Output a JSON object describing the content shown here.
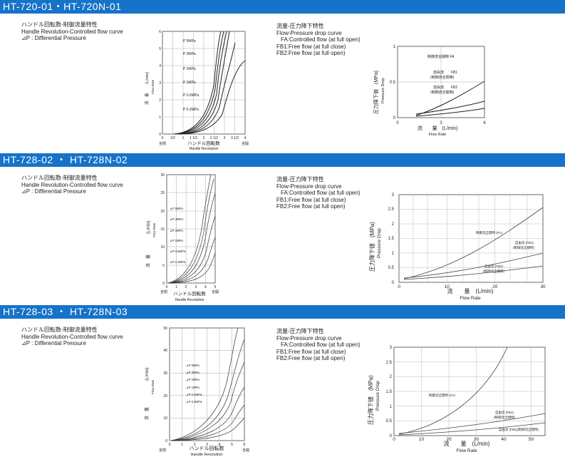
{
  "sections": [
    {
      "title": "HT-720-01・HT-720N-01",
      "left_labels": [
        "ハンドル回転数-制御流量特性",
        "Handle Revolution-Controlled flow curve",
        "⊿P : Differential Pressure"
      ],
      "right_labels": [
        "流量-圧力降下特性",
        "Flow-Pressure drop curve",
        "FA:Controlled flow (at full open)",
        "FB1:Free flow (at full close)",
        "FB2:Free flow (at full open)"
      ],
      "handle_chart": {
        "y_ticks": [
          "6",
          "5",
          "4",
          "3",
          "2",
          "1",
          "0"
        ],
        "x_ticks": [
          "0",
          "1/2",
          "1",
          "1 1/2",
          "2",
          "2 1/2",
          "3",
          "3 1/2",
          "4"
        ],
        "x_end_labels": [
          "全閉",
          "全開"
        ],
        "xlabel_jp": "ハンドル回転数",
        "xlabel_en": "Handle Revolution",
        "ylabel_jp": "流　量",
        "ylabel_unit": "(L/min)",
        "ylabel_en": "Flow Rate",
        "pressures": [
          "P 5MPa",
          "P 3MPa",
          "P 2MPa",
          "P 1MPa",
          "P 0.6MPa",
          "P 0.3MPa"
        ]
      },
      "drop_chart": {
        "y_ticks": [
          "1",
          "0.5",
          "0"
        ],
        "x_ticks": [
          "0",
          "3",
          "6"
        ],
        "xlabel_jp": "流　　量　(L/min)",
        "xlabel_en": "Flow Rate",
        "ylabel_jp": "圧力降下値　(MPa)",
        "ylabel_en": "Pressure Drop",
        "annotations": [
          "制御流全開時 FA",
          "自由流　　FB1",
          "(制御流全閉時)",
          "自由流　　FB2",
          "(制御流全開時)"
        ]
      }
    },
    {
      "title": "HT-728-02 ・ HT-728N-02",
      "left_labels": [
        "ハンドル回転数-制御流量特性",
        "Handle Revolution-Controlled flow curve",
        "⊿P : Differential Pressure"
      ],
      "right_labels": [
        "流量-圧力降下特性",
        "Flow-Pressure drop curve",
        "FA:Controlled flow (at full open)",
        "FB1:Free flow (at full close)",
        "FB2:Free flow (at full open)"
      ],
      "handle_chart": {
        "y_ticks": [
          "30",
          "25",
          "20",
          "15",
          "10",
          "5",
          "0"
        ],
        "x_ticks": [
          "0",
          "1",
          "2",
          "3",
          "4",
          "5"
        ],
        "x_end_labels": [
          "全閉",
          "全開"
        ],
        "xlabel_jp": "ハンドル回転数",
        "xlabel_en": "Handle Revolution",
        "ylabel_jp": "流　量",
        "ylabel_unit": "(L/min)",
        "ylabel_en": "Flow Rate",
        "pressures": [
          "⊿P 5MPa",
          "⊿P 3MPa",
          "⊿P 2MPa",
          "⊿P 1MPa",
          "⊿P 0.6MPa",
          "⊿P 0.3MPa"
        ]
      },
      "drop_chart": {
        "y_ticks": [
          "3",
          "2.5",
          "2",
          "1.5",
          "1",
          "0.5",
          "0"
        ],
        "x_ticks": [
          "0",
          "10",
          "20",
          "30"
        ],
        "xlabel_jp": "流　　量　(L/min)",
        "xlabel_en": "Flow Rate",
        "ylabel_jp": "圧力降下値　(MPa)",
        "ylabel_en": "Pressure Drop",
        "annotations": [
          "制御流全開時 (FA)",
          "自由流 (FB1)",
          "(制御流全閉時)",
          "自由流 (FB2)",
          "(制御流全開時)"
        ]
      }
    },
    {
      "title": "HT-728-03 ・ HT-728N-03",
      "left_labels": [
        "ハンドル回転数-制御流量特性",
        "Handle Revolution-Controlled flow curve",
        "⊿P : Differential Pressure"
      ],
      "right_labels": [
        "流量-圧力降下特性",
        "Flow-Pressure drop curve",
        "FA:Controlled flow (at full open)",
        "FB1:Free flow (at full close)",
        "FB2:Free flow (at full open)"
      ],
      "handle_chart": {
        "y_ticks": [
          "50",
          "40",
          "30",
          "20",
          "10",
          "0"
        ],
        "x_ticks": [
          "0",
          "1",
          "2",
          "3",
          "4",
          "5",
          "6"
        ],
        "x_end_labels": [
          "全閉",
          "全開"
        ],
        "xlabel_jp": "ハンドル回転数",
        "xlabel_en": "Handle Revolution",
        "ylabel_jp": "流　量",
        "ylabel_unit": "(L/min)",
        "ylabel_en": "Flow Rate",
        "pressures": [
          "⊿P 5MPa",
          "⊿P 3MPa",
          "⊿P 2MPa",
          "⊿P 1MPa",
          "⊿P 0.6MPa",
          "⊿P 0.3MPa"
        ]
      },
      "drop_chart": {
        "y_ticks": [
          "3",
          "2.5",
          "2",
          "1.5",
          "1",
          "0.5",
          "0"
        ],
        "x_ticks": [
          "0",
          "10",
          "20",
          "30",
          "40",
          "50"
        ],
        "xlabel_jp": "流　　量　(L/min)",
        "xlabel_en": "Flow Rate",
        "ylabel_jp": "圧力降下値　(MPa)",
        "ylabel_en": "Pressure Drop",
        "annotations": [
          "制御流全開時 (FA)",
          "自由流 (FB1)",
          "(制御流全閉時)",
          "自由流 (FB2)(制御流全開時)"
        ]
      }
    }
  ],
  "colors": {
    "header_bg": "#1673c9",
    "header_text": "#ffffff",
    "grid": "#9a9a9a",
    "curve": "#222222"
  }
}
